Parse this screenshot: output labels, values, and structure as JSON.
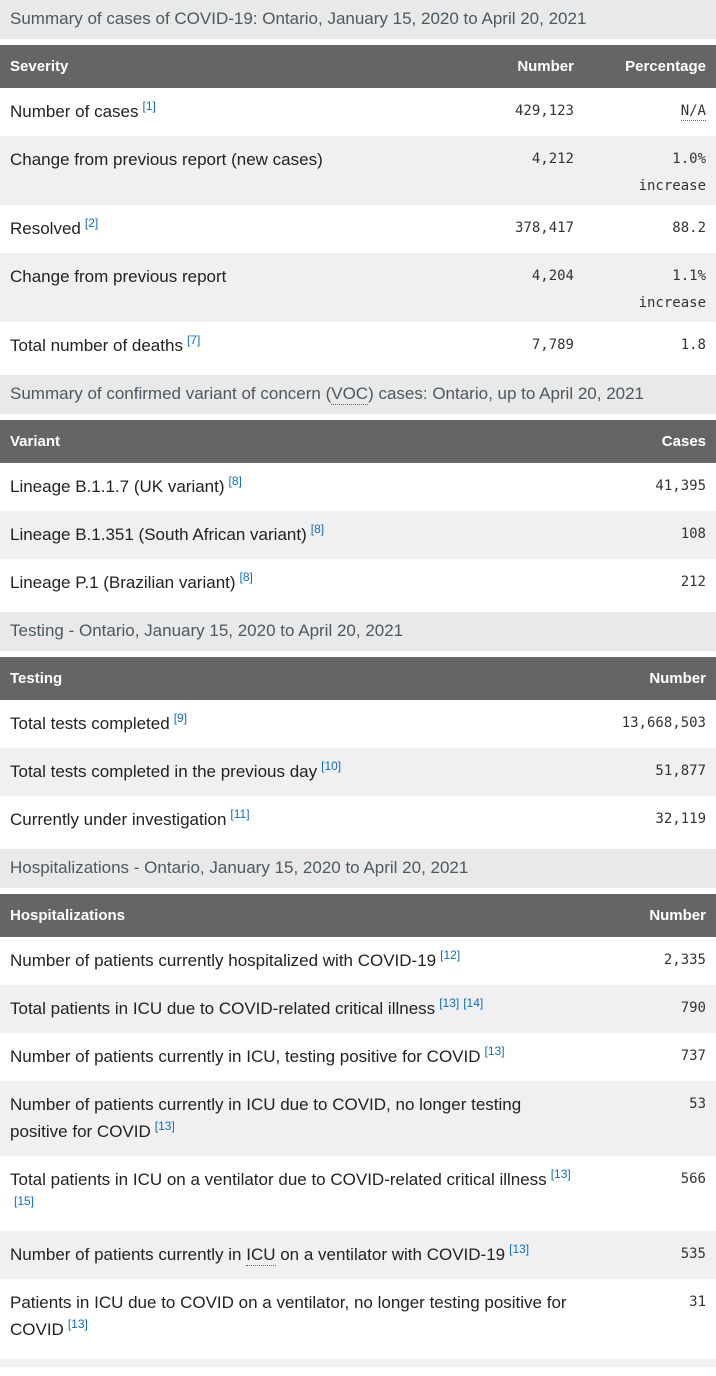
{
  "colors": {
    "table_header_bg": "#656565",
    "table_header_text": "#ffffff",
    "caption_bg": "#e9e9e9",
    "caption_text": "#4c5961",
    "stripe_row_bg": "#f0f0f0",
    "footnote_link": "#0e6cc4",
    "number_text": "#333333",
    "label_text": "#222222"
  },
  "tables": [
    {
      "caption": "Summary of cases of COVID-19: Ontario, January 15, 2020 to April 20, 2021",
      "columns": {
        "label": "Severity",
        "number": "Number",
        "percentage": "Percentage"
      },
      "rows": [
        {
          "label": "Number of cases",
          "refs": [
            "[1]"
          ],
          "number": "429,123",
          "percentage": "N/A"
        },
        {
          "label": "Change from previous report (new cases)",
          "number": "4,212",
          "percentage": "1.0%",
          "percentage_note": "increase"
        },
        {
          "label": "Resolved",
          "refs": [
            "[2]"
          ],
          "number": "378,417",
          "percentage": "88.2"
        },
        {
          "label": "Change from previous report",
          "number": "4,204",
          "percentage": "1.1%",
          "percentage_note": "increase"
        },
        {
          "label": "Total number of deaths",
          "refs": [
            "[7]"
          ],
          "number": "7,789",
          "percentage": "1.8"
        }
      ]
    },
    {
      "caption_pre": "Summary of confirmed variant of concern (",
      "caption_abbr": "VOC",
      "caption_post": ") cases: Ontario, up to April 20, 2021",
      "columns": {
        "label": "Variant",
        "number": "Cases"
      },
      "rows": [
        {
          "label": "Lineage B.1.1.7 (UK variant)",
          "refs": [
            "[8]"
          ],
          "number": "41,395"
        },
        {
          "label": "Lineage B.1.351 (South African variant)",
          "refs": [
            "[8]"
          ],
          "number": "108"
        },
        {
          "label": "Lineage P.1 (Brazilian variant)",
          "refs": [
            "[8]"
          ],
          "number": "212"
        }
      ]
    },
    {
      "caption": "Testing - Ontario, January 15, 2020 to April 20, 2021",
      "columns": {
        "label": "Testing",
        "number": "Number"
      },
      "rows": [
        {
          "label": "Total tests completed",
          "refs": [
            "[9]"
          ],
          "number": "13,668,503"
        },
        {
          "label": "Total tests completed in the previous day",
          "refs": [
            "[10]"
          ],
          "number": "51,877"
        },
        {
          "label": "Currently under investigation",
          "refs": [
            "[11]"
          ],
          "number": "32,119"
        }
      ]
    },
    {
      "caption": "Hospitalizations - Ontario, January 15, 2020 to April 20, 2021",
      "columns": {
        "label": "Hospitalizations",
        "number": "Number"
      },
      "rows": [
        {
          "label": "Number of patients currently hospitalized with COVID-19",
          "refs": [
            "[12]"
          ],
          "number": "2,335"
        },
        {
          "label": "Total patients in ICU due to COVID-related critical illness",
          "refs": [
            "[13]",
            "[14]"
          ],
          "number": "790"
        },
        {
          "label": "Number of patients currently in ICU, testing positive for COVID",
          "refs": [
            "[13]"
          ],
          "number": "737"
        },
        {
          "label": "Number of patients currently in ICU due to COVID, no longer testing positive for COVID",
          "refs": [
            "[13]"
          ],
          "number": "53"
        },
        {
          "label": "Total patients in ICU on a ventilator due to COVID-related critical illness",
          "refs": [
            "[13]",
            "[15]"
          ],
          "number": "566"
        },
        {
          "label_pre": "Number of patients currently in ",
          "label_abbr": "ICU",
          "label_post": " on a ventilator with COVID-19",
          "refs": [
            "[13]"
          ],
          "number": "535"
        },
        {
          "label": "Patients in ICU due to COVID on a ventilator, no longer testing positive for COVID",
          "refs": [
            "[13]"
          ],
          "number": "31"
        }
      ]
    }
  ]
}
